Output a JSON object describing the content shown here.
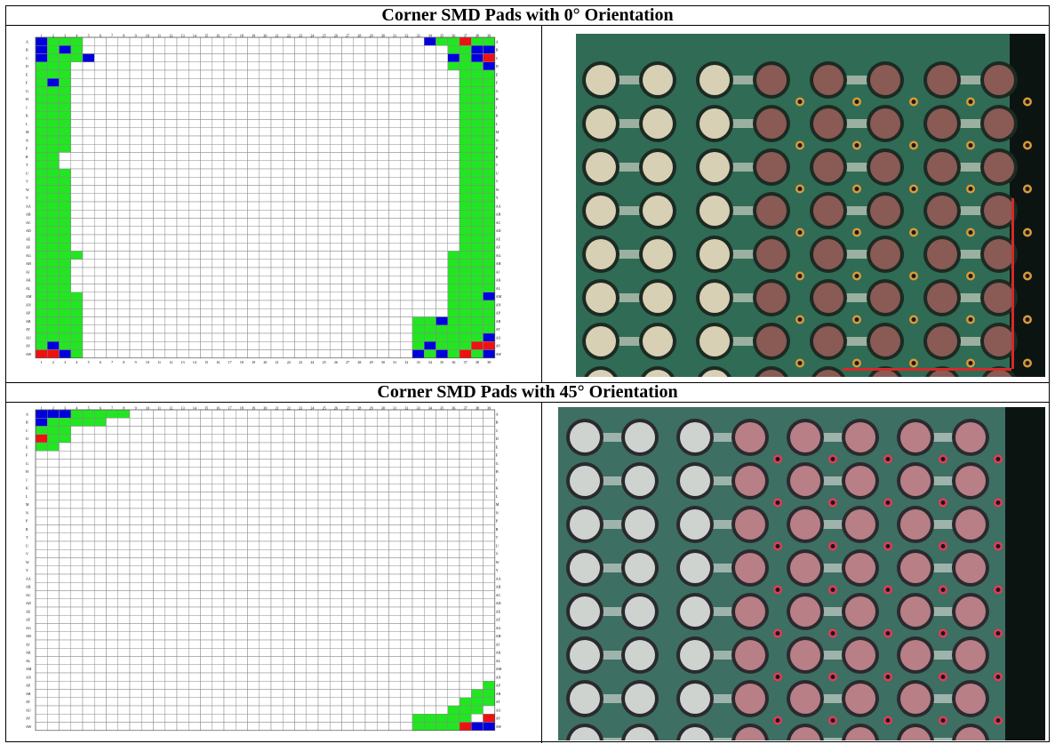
{
  "sections": [
    {
      "title": "Corner SMD Pads with 0° Orientation"
    },
    {
      "title": "Corner SMD Pads with 45° Orientation"
    }
  ],
  "grid": {
    "columns": [
      "1",
      "2",
      "3",
      "4",
      "5",
      "6",
      "7",
      "8",
      "9",
      "10",
      "11",
      "12",
      "13",
      "14",
      "15",
      "16",
      "17",
      "18",
      "19",
      "20",
      "21",
      "22",
      "23",
      "24",
      "25",
      "26",
      "27",
      "28",
      "29",
      "30",
      "31",
      "32",
      "33",
      "34",
      "35",
      "36",
      "37",
      "38",
      "39"
    ],
    "rows": [
      "A",
      "B",
      "C",
      "D",
      "E",
      "F",
      "G",
      "H",
      "J",
      "K",
      "L",
      "M",
      "N",
      "P",
      "R",
      "T",
      "U",
      "V",
      "W",
      "Y",
      "AA",
      "AB",
      "AC",
      "AD",
      "AE",
      "AF",
      "AG",
      "AH",
      "AJ",
      "AK",
      "AL",
      "AM",
      "AN",
      "AP",
      "AR",
      "AT",
      "AU",
      "AV",
      "AW"
    ],
    "legend_colors": {
      "pass": "#22e622",
      "blue": "#0000dd",
      "red": "#ee1111",
      "empty": "#ffffff"
    }
  },
  "photos": [
    {
      "label": "0-degree-corner-photo",
      "board_color": "#2f6b55"
    },
    {
      "label": "45-degree-corner-photo",
      "board_color": "#3d6f63"
    }
  ]
}
